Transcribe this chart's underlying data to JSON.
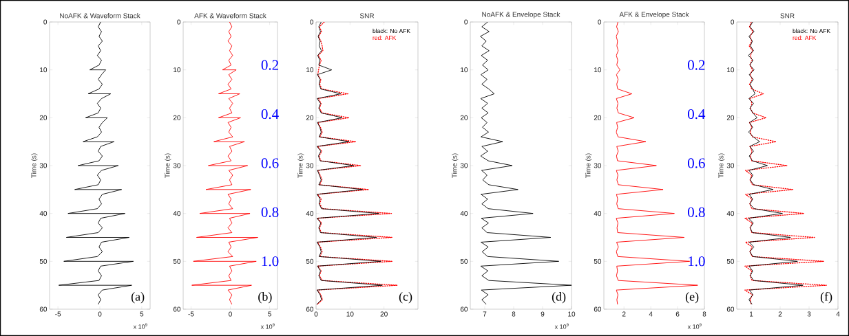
{
  "chart_data": [
    {
      "type": "line",
      "title": "NoAFK & Waveform Stack",
      "ylabel": "Time (s)",
      "xlim": [
        -6,
        6
      ],
      "xticks": [
        -5,
        0,
        5
      ],
      "ylim": [
        60,
        0
      ],
      "yticks": [
        0,
        10,
        20,
        30,
        40,
        50,
        60
      ],
      "annotations": [
        "(a)",
        "x 10$^{9}$"
      ],
      "series": [
        {
          "color": "#000000",
          "x": [
            0.1,
            -0.2,
            0.2,
            -0.1,
            0.3,
            -0.2,
            0.1,
            -0.3,
            0.2,
            -0.1,
            -1.2,
            0.7,
            0.2,
            -0.2,
            0.3,
            -0.1,
            -1.4,
            1.3,
            0.2,
            -0.3,
            0.1,
            -0.2,
            -1.7,
            0.9,
            0.3,
            -0.1,
            0.2,
            -0.3,
            -2.0,
            1.7,
            0.1,
            -0.2,
            0.3,
            -0.1,
            -2.6,
            2.2,
            0.2,
            -0.3,
            0.1,
            -0.2,
            -3.0,
            2.6,
            0.3,
            -0.1,
            0.2,
            -0.3,
            -3.8,
            3.0,
            0.1,
            -0.2,
            0.3,
            -0.2,
            -4.0,
            3.5,
            0.2,
            -0.1,
            0.3,
            -0.3,
            -4.3,
            4.0,
            0.1,
            -0.2,
            0.2,
            -0.1,
            -4.9,
            3.8,
            0.3,
            -0.2,
            0.1,
            -0.2
          ],
          "values": [
            0,
            1,
            2,
            3,
            4,
            5,
            6,
            7,
            8,
            9,
            10,
            10,
            11,
            12,
            13,
            14,
            15,
            15,
            16,
            17,
            18,
            19,
            20,
            20,
            21,
            22,
            23,
            24,
            25,
            25,
            26,
            27,
            28,
            29,
            30,
            30,
            31,
            32,
            33,
            34,
            35,
            35,
            36,
            37,
            38,
            39,
            40,
            40,
            41,
            42,
            43,
            44,
            45,
            45,
            46,
            47,
            48,
            49,
            50,
            50,
            51,
            52,
            53,
            54,
            55,
            55,
            56,
            57,
            58,
            59
          ]
        }
      ]
    },
    {
      "type": "line",
      "title": "AFK & Waveform Stack",
      "ylabel": "Time (s)",
      "xlim": [
        -6,
        6
      ],
      "xticks": [
        -5,
        0,
        5
      ],
      "ylim": [
        60,
        0
      ],
      "yticks": [
        0,
        10,
        20,
        30,
        40,
        50,
        60
      ],
      "annotations": [
        "(b)",
        "x 10$^{9}$",
        "0.2",
        "0.4",
        "0.6",
        "0.8",
        "1.0"
      ],
      "series": [
        {
          "color": "#ff0000",
          "x": [
            -0.1,
            0.2,
            -0.2,
            0.1,
            -0.3,
            0.2,
            -0.1,
            0.3,
            -0.2,
            0.1,
            -1.0,
            0.75,
            -0.2,
            0.2,
            -0.3,
            0.1,
            -1.5,
            1.2,
            -0.2,
            0.3,
            -0.1,
            0.2,
            -1.5,
            1.3,
            -0.3,
            0.1,
            -0.2,
            0.3,
            -2.1,
            1.8,
            -0.1,
            0.2,
            -0.3,
            0.1,
            -2.8,
            2.2,
            -0.2,
            0.3,
            -0.1,
            0.2,
            -3.1,
            2.6,
            -0.3,
            0.1,
            -0.2,
            0.3,
            -3.9,
            2.5,
            -0.1,
            0.2,
            -0.3,
            0.2,
            -4.3,
            3.5,
            -0.2,
            0.1,
            -0.3,
            0.3,
            -4.7,
            3.3,
            -0.1,
            0.2,
            -0.2,
            0.1,
            -4.9,
            2.7,
            -0.3,
            0.2,
            -0.1,
            0.2
          ],
          "values": [
            0,
            1,
            2,
            3,
            4,
            5,
            6,
            7,
            8,
            9,
            10,
            10,
            11,
            12,
            13,
            14,
            15,
            15,
            16,
            17,
            18,
            19,
            20,
            20,
            21,
            22,
            23,
            24,
            25,
            25,
            26,
            27,
            28,
            29,
            30,
            30,
            31,
            32,
            33,
            34,
            35,
            35,
            36,
            37,
            38,
            39,
            40,
            40,
            41,
            42,
            43,
            44,
            45,
            45,
            46,
            47,
            48,
            49,
            50,
            50,
            51,
            52,
            53,
            54,
            55,
            55,
            56,
            57,
            58,
            59
          ]
        }
      ]
    },
    {
      "type": "line",
      "title": "SNR",
      "ylabel": "Time (s)",
      "xlim": [
        0,
        30
      ],
      "xticks": [
        0,
        10,
        20
      ],
      "ylim": [
        60,
        0
      ],
      "yticks": [
        0,
        10,
        20,
        30,
        40,
        50,
        60
      ],
      "legend": "top right",
      "annotations": [
        "(c)"
      ],
      "series": [
        {
          "name": "black:  No AFK",
          "color": "#000000",
          "x": [
            1.5,
            0.8,
            1.3,
            0.6,
            1.2,
            0.9,
            1.6,
            0.5,
            1.1,
            0.8,
            4.6,
            0.4,
            1.2,
            0.9,
            1.4,
            7.3,
            0.3,
            1.3,
            0.8,
            1.5,
            7.7,
            0.4,
            1.1,
            1.5,
            0.9,
            9.7,
            0.3,
            1.4,
            0.7,
            1.2,
            11.1,
            0.4,
            1.0,
            1.5,
            0.8,
            13.7,
            0.3,
            1.2,
            0.9,
            1.6,
            18.5,
            0.3,
            1.4,
            0.8,
            1.3,
            17.8,
            0.3,
            1.1,
            1.5,
            0.9,
            19.1,
            0.4,
            1.3,
            0.8,
            1.5,
            19.5,
            0.3,
            1.2,
            1.6,
            0.2
          ],
          "values": [
            0,
            1,
            2,
            3,
            4,
            5,
            6,
            7,
            8,
            9,
            10,
            11,
            12,
            13,
            14,
            15,
            16,
            17,
            18,
            19,
            20,
            21,
            22,
            23,
            24,
            25,
            26,
            27,
            28,
            29,
            30,
            31,
            32,
            33,
            34,
            35,
            36,
            37,
            38,
            39,
            40,
            41,
            42,
            43,
            44,
            45,
            46,
            47,
            48,
            49,
            50,
            51,
            52,
            53,
            54,
            55,
            56,
            57,
            58,
            59
          ]
        },
        {
          "name": "red:  AFK",
          "color": "#ff0000",
          "line_style": "dotted",
          "x": [
            2.4,
            1.0,
            1.6,
            0.7,
            1.4,
            1.8,
            2.0,
            0.6,
            1.5,
            1.0,
            0.5,
            1.4,
            1.1,
            1.7,
            9.4,
            0.6,
            1.5,
            1.0,
            1.8,
            9.7,
            0.5,
            1.3,
            1.8,
            1.1,
            11.7,
            0.4,
            1.7,
            0.9,
            1.4,
            13.2,
            0.5,
            1.2,
            1.8,
            1.0,
            15.5,
            0.4,
            1.5,
            1.1,
            1.9,
            22.2,
            0.4,
            1.6,
            1.0,
            1.5,
            22.4,
            0.4,
            1.3,
            1.8,
            1.1,
            22.5,
            0.5,
            1.5,
            1.0,
            1.8,
            23.9,
            0.4,
            1.4,
            1.9,
            0.3
          ],
          "values": [
            0,
            1,
            2,
            3,
            4,
            5,
            6,
            7,
            8,
            9,
            11,
            12,
            13,
            14,
            15,
            16,
            17,
            18,
            19,
            20,
            21,
            22,
            23,
            24,
            25,
            26,
            27,
            28,
            29,
            30,
            31,
            32,
            33,
            34,
            35,
            36,
            37,
            38,
            39,
            40,
            41,
            42,
            43,
            44,
            45,
            46,
            47,
            48,
            49,
            50,
            51,
            52,
            53,
            54,
            55,
            56,
            57,
            58,
            59
          ]
        }
      ]
    },
    {
      "type": "line",
      "title": "NoAFK & Envelope Stack",
      "ylabel": "Time (s)",
      "xlim": [
        6.5,
        10
      ],
      "xticks": [
        7,
        8,
        9,
        10
      ],
      "ylim": [
        60,
        0
      ],
      "yticks": [
        0,
        10,
        20,
        30,
        40,
        50,
        60
      ],
      "annotations": [
        "(d)",
        "x 10$^{9}$"
      ],
      "series": [
        {
          "color": "#000000",
          "x": [
            7.1,
            6.9,
            7.15,
            6.85,
            7.05,
            6.9,
            7.15,
            6.88,
            7.1,
            6.92,
            7.12,
            6.87,
            7.08,
            6.9,
            7.14,
            7.33,
            6.86,
            7.1,
            6.9,
            7.12,
            6.88,
            7.08,
            6.92,
            7.13,
            6.87,
            7.62,
            6.9,
            7.1,
            6.86,
            7.12,
            7.95,
            6.89,
            7.08,
            6.93,
            7.14,
            8.15,
            6.87,
            7.1,
            6.9,
            7.12,
            8.67,
            6.88,
            7.13,
            6.9,
            7.08,
            9.28,
            6.87,
            7.12,
            6.91,
            7.1,
            9.56,
            6.86,
            7.11,
            6.9,
            7.14,
            10.0,
            6.88,
            7.12,
            6.9,
            7.05
          ],
          "values": [
            0,
            1,
            2,
            3,
            4,
            5,
            6,
            7,
            8,
            9,
            10,
            11,
            12,
            13,
            14,
            15,
            16,
            17,
            18,
            19,
            20,
            21,
            22,
            23,
            24,
            25,
            26,
            27,
            28,
            29,
            30,
            31,
            32,
            33,
            34,
            35,
            36,
            37,
            38,
            39,
            40,
            41,
            42,
            43,
            44,
            45,
            46,
            47,
            48,
            49,
            50,
            51,
            52,
            53,
            54,
            55,
            56,
            57,
            58,
            59
          ]
        }
      ]
    },
    {
      "type": "line",
      "title": "AFK & Envelope Stack",
      "ylabel": "Time (s)",
      "xlim": [
        0.5,
        8
      ],
      "xticks": [
        2,
        4,
        6,
        8
      ],
      "ylim": [
        60,
        0
      ],
      "yticks": [
        0,
        10,
        20,
        30,
        40,
        50,
        60
      ],
      "annotations": [
        "(e)",
        "x 10$^{9}$",
        "0.2",
        "0.4",
        "0.6",
        "0.8",
        "1.0"
      ],
      "series": [
        {
          "color": "#ff0000",
          "x": [
            1.55,
            1.45,
            1.58,
            1.42,
            1.52,
            1.47,
            1.57,
            1.43,
            1.54,
            1.46,
            1.7,
            1.44,
            1.56,
            1.46,
            1.53,
            2.59,
            1.43,
            1.55,
            1.47,
            1.58,
            2.76,
            1.45,
            1.53,
            1.42,
            1.56,
            3.63,
            1.46,
            1.57,
            1.44,
            1.52,
            4.42,
            1.43,
            1.55,
            1.47,
            1.58,
            4.92,
            1.44,
            1.53,
            1.46,
            1.57,
            5.76,
            1.42,
            1.55,
            1.48,
            1.53,
            6.49,
            1.45,
            1.58,
            1.43,
            1.54,
            6.9,
            1.46,
            1.52,
            1.44,
            1.57,
            7.5,
            1.43,
            1.55,
            1.47,
            1.52
          ],
          "values": [
            0,
            1,
            2,
            3,
            4,
            5,
            6,
            7,
            8,
            9,
            10,
            11,
            12,
            13,
            14,
            15,
            16,
            17,
            18,
            19,
            20,
            21,
            22,
            23,
            24,
            25,
            26,
            27,
            28,
            29,
            30,
            31,
            32,
            33,
            34,
            35,
            36,
            37,
            38,
            39,
            40,
            41,
            42,
            43,
            44,
            45,
            46,
            47,
            48,
            49,
            50,
            51,
            52,
            53,
            54,
            55,
            56,
            57,
            58,
            59
          ]
        }
      ]
    },
    {
      "type": "line",
      "title": "SNR",
      "ylabel": "Time (s)",
      "xlim": [
        0.5,
        4
      ],
      "xticks": [
        1,
        2,
        3,
        4
      ],
      "ylim": [
        60,
        0
      ],
      "yticks": [
        0,
        10,
        20,
        30,
        40,
        50,
        60
      ],
      "legend": "top right",
      "annotations": [
        "(f)"
      ],
      "series": [
        {
          "name": "black:  No AFK",
          "color": "#000000",
          "x": [
            1.05,
            0.95,
            1.1,
            0.92,
            1.04,
            0.97,
            1.08,
            0.9,
            1.06,
            0.95,
            1.1,
            0.93,
            1.07,
            0.96,
            1.05,
            1.13,
            0.92,
            1.08,
            0.95,
            1.06,
            1.2,
            0.94,
            1.05,
            0.91,
            1.07,
            1.29,
            0.95,
            1.08,
            0.93,
            1.04,
            1.56,
            0.92,
            1.06,
            0.96,
            1.09,
            1.76,
            0.93,
            1.05,
            0.95,
            1.1,
            2.08,
            0.91,
            1.07,
            0.96,
            1.04,
            2.36,
            0.93,
            1.09,
            0.95,
            1.06,
            2.6,
            0.92,
            1.05,
            0.97,
            1.08,
            2.79,
            0.94,
            1.06,
            0.92,
            1.03
          ],
          "values": [
            0,
            1,
            2,
            3,
            4,
            5,
            6,
            7,
            8,
            9,
            10,
            11,
            12,
            13,
            14,
            15,
            16,
            17,
            18,
            19,
            20,
            21,
            22,
            23,
            24,
            25,
            26,
            27,
            28,
            29,
            30,
            31,
            32,
            33,
            34,
            35,
            36,
            37,
            38,
            39,
            40,
            41,
            42,
            43,
            44,
            45,
            46,
            47,
            48,
            49,
            50,
            51,
            52,
            53,
            54,
            55,
            56,
            57,
            58,
            59
          ]
        },
        {
          "name": "red:  AFK",
          "color": "#ff0000",
          "line_style": "dotted",
          "x": [
            1.0,
            0.94,
            1.06,
            0.96,
            1.02,
            0.93,
            1.05,
            0.97,
            1.03,
            0.95,
            1.05,
            0.96,
            1.04,
            0.94,
            1.02,
            1.42,
            0.95,
            1.03,
            0.97,
            1.05,
            1.51,
            0.94,
            1.02,
            0.96,
            1.04,
            1.86,
            0.95,
            1.03,
            0.97,
            1.02,
            2.24,
            0.8,
            1.02,
            0.96,
            1.04,
            2.44,
            0.8,
            1.03,
            0.95,
            1.02,
            2.83,
            0.78,
            1.04,
            0.96,
            1.02,
            3.19,
            0.8,
            1.03,
            0.95,
            1.04,
            3.51,
            0.78,
            1.02,
            0.96,
            1.03,
            3.6,
            0.78,
            1.04,
            0.96,
            1.0
          ],
          "values": [
            0,
            1,
            2,
            3,
            4,
            5,
            6,
            7,
            8,
            9,
            10,
            11,
            12,
            13,
            14,
            15,
            16,
            17,
            18,
            19,
            20,
            21,
            22,
            23,
            24,
            25,
            26,
            27,
            28,
            29,
            30,
            31,
            32,
            33,
            34,
            35,
            36,
            37,
            38,
            39,
            40,
            41,
            42,
            43,
            44,
            45,
            46,
            47,
            48,
            49,
            50,
            51,
            52,
            53,
            54,
            55,
            56,
            57,
            58,
            59
          ]
        }
      ]
    }
  ]
}
